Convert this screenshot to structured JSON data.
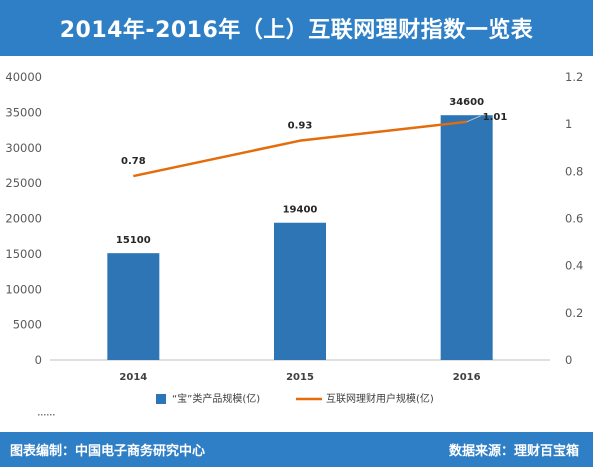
{
  "title": "2014年-2016年（上）互联网理财指数一览表",
  "footer": {
    "left": "图表编制：中国电子商务研究中心",
    "right": "数据来源：理财百宝箱"
  },
  "colors": {
    "header_bg": "#2f7fc6",
    "bar": "#2e75b6",
    "line": "#e46c0a"
  },
  "chart_data": {
    "type": "bar+line",
    "categories": [
      "2014",
      "2015",
      "2016"
    ],
    "series": [
      {
        "name": "“宝”类产品规模(亿)",
        "type": "bar",
        "axis": "left",
        "values": [
          15100,
          19400,
          34600
        ]
      },
      {
        "name": "互联网理财用户规模(亿)",
        "type": "line",
        "axis": "right",
        "values": [
          0.78,
          0.93,
          1.01
        ]
      }
    ],
    "y_left": {
      "ylim": [
        0,
        40000
      ],
      "ticks": [
        "0",
        "5000",
        "10000",
        "15000",
        "20000",
        "25000",
        "30000",
        "35000",
        "40000"
      ]
    },
    "y_right": {
      "ylim": [
        0,
        1.2
      ],
      "ticks": [
        "0",
        "0.2",
        "0.4",
        "0.6",
        "0.8",
        "1",
        "1.2"
      ]
    },
    "bar_labels": [
      "15100",
      "19400",
      "34600"
    ],
    "line_labels": [
      "0.78",
      "0.93",
      "1.01"
    ],
    "grid": false,
    "legend_position": "bottom"
  }
}
